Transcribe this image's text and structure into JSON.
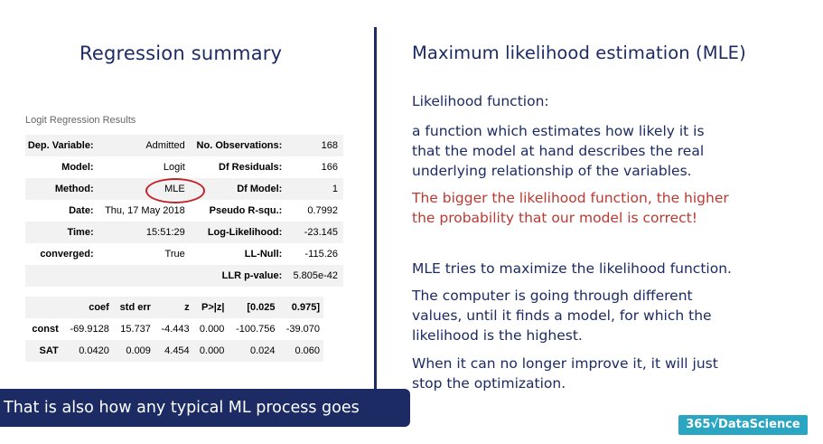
{
  "left_title": "Regression summary",
  "right_title": "Maximum likelihood estimation (MLE)",
  "results_caption": "Logit Regression Results",
  "summary_rows": [
    {
      "k1": "Dep. Variable:",
      "v1": "Admitted",
      "k2": "No. Observations:",
      "v2": "168"
    },
    {
      "k1": "Model:",
      "v1": "Logit",
      "k2": "Df Residuals:",
      "v2": "166"
    },
    {
      "k1": "Method:",
      "v1": "MLE",
      "k2": "Df Model:",
      "v2": "1"
    },
    {
      "k1": "Date:",
      "v1": "Thu, 17 May 2018",
      "k2": "Pseudo R-squ.:",
      "v2": "0.7992"
    },
    {
      "k1": "Time:",
      "v1": "15:51:29",
      "k2": "Log-Likelihood:",
      "v2": "-23.145"
    },
    {
      "k1": "converged:",
      "v1": "True",
      "k2": "LL-Null:",
      "v2": "-115.26"
    },
    {
      "k1": "",
      "v1": "",
      "k2": "LLR p-value:",
      "v2": "5.805e-42"
    }
  ],
  "coef_headers": [
    "",
    "coef",
    "std err",
    "z",
    "P>|z|",
    "[0.025",
    "0.975]"
  ],
  "coef_rows": [
    [
      "const",
      "-69.9128",
      "15.737",
      "-4.443",
      "0.000",
      "-100.756",
      "-39.070"
    ],
    [
      "SAT",
      "0.0420",
      "0.009",
      "4.454",
      "0.000",
      "0.024",
      "0.060"
    ]
  ],
  "right_text": {
    "heading": "Likelihood function:",
    "definition_lines": [
      "a function which estimates how likely it is",
      "that the model at hand describes the real",
      "underlying relationship of the variables."
    ],
    "red_lines": [
      "The bigger the likelihood function, the higher",
      "the probability that our model is correct!"
    ],
    "mle_line": "MLE tries to maximize the likelihood function.",
    "computer_lines": [
      "The computer is going through different",
      "values, until it finds a model, for which the",
      "likelihood is the highest."
    ],
    "stop_lines": [
      "When it can no longer improve it, it will just",
      "stop the optimization."
    ]
  },
  "caption": "That is also how any typical ML process goes",
  "logo_text": "365√DataScience",
  "colors": {
    "navy": "#1c2b63",
    "red": "#b93a32",
    "circle": "#c0242b",
    "logo": "#2aa6c2"
  }
}
